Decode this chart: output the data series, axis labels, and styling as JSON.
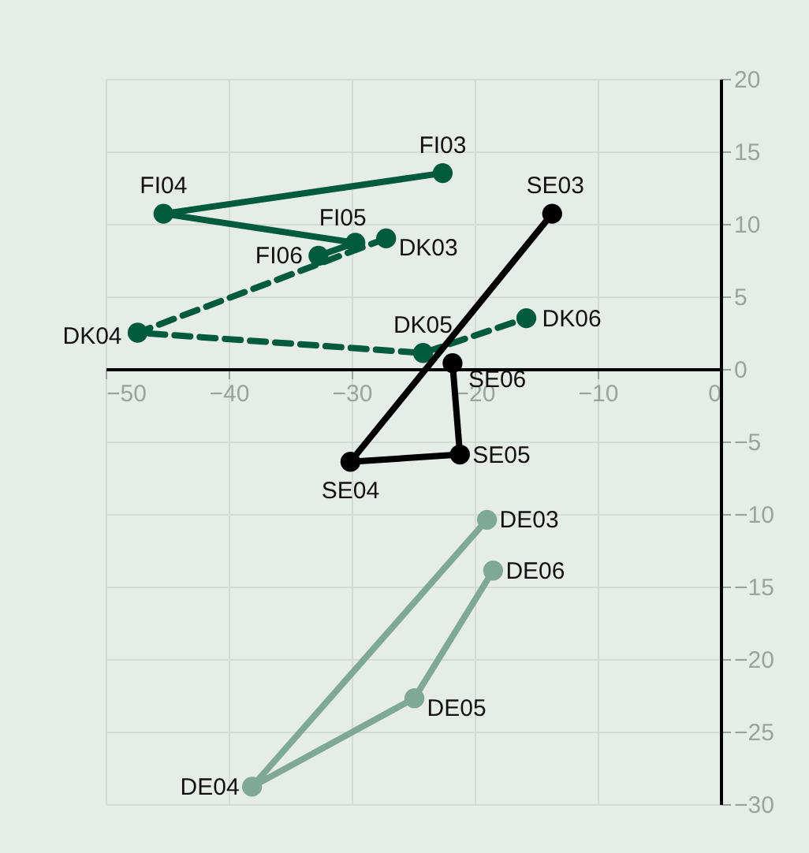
{
  "chart_data": {
    "type": "line",
    "marker": "circle",
    "grid": true,
    "xlim": [
      -50,
      0
    ],
    "xticks": [
      -50,
      -40,
      -30,
      -20,
      -10,
      0
    ],
    "ylim": [
      -30,
      20
    ],
    "yticks": [
      -30,
      -25,
      -20,
      -15,
      -10,
      -5,
      0,
      5,
      10,
      15,
      20
    ],
    "series": [
      {
        "color": "#005a3c",
        "line_style": "solid",
        "x": [
          -22.6,
          -45.3,
          -29.7,
          -32.7
        ],
        "values": [
          13.5,
          10.7,
          8.7,
          7.8
        ]
      },
      {
        "color": "#005a3c",
        "line_style": "dashed",
        "x": [
          -27.2,
          -47.4,
          -24.2,
          -15.8
        ],
        "values": [
          9.0,
          2.5,
          1.1,
          3.5
        ]
      },
      {
        "color": "#000000",
        "line_style": "solid",
        "x": [
          -13.7,
          -30.1,
          -21.2,
          -21.8
        ],
        "values": [
          10.7,
          -6.4,
          -5.9,
          0.4
        ]
      },
      {
        "color": "#7fa898",
        "line_style": "solid",
        "x": [
          -19.0,
          -38.1,
          -24.9,
          -18.5
        ],
        "values": [
          -10.4,
          -28.8,
          -22.7,
          -13.9
        ]
      }
    ],
    "annotations": [
      {
        "text": "FI03",
        "x": -22.6,
        "y": 13.5
      },
      {
        "text": "FI04",
        "x": -45.3,
        "y": 10.7
      },
      {
        "text": "FI05",
        "x": -29.7,
        "y": 8.7
      },
      {
        "text": "FI06",
        "x": -32.7,
        "y": 7.8
      },
      {
        "text": "DK03",
        "x": -27.2,
        "y": 9.0
      },
      {
        "text": "DK04",
        "x": -47.4,
        "y": 2.5
      },
      {
        "text": "DK05",
        "x": -24.2,
        "y": 1.1
      },
      {
        "text": "DK06",
        "x": -15.8,
        "y": 3.5
      },
      {
        "text": "SE03",
        "x": -13.7,
        "y": 10.7
      },
      {
        "text": "SE04",
        "x": -30.1,
        "y": -6.4
      },
      {
        "text": "SE05",
        "x": -21.2,
        "y": -5.9
      },
      {
        "text": "SE06",
        "x": -21.8,
        "y": 0.4
      },
      {
        "text": "DE03",
        "x": -19.0,
        "y": -10.4
      },
      {
        "text": "DE04",
        "x": -38.1,
        "y": -28.8
      },
      {
        "text": "DE05",
        "x": -24.9,
        "y": -22.7
      },
      {
        "text": "DE06",
        "x": -18.5,
        "y": -13.9
      }
    ]
  }
}
